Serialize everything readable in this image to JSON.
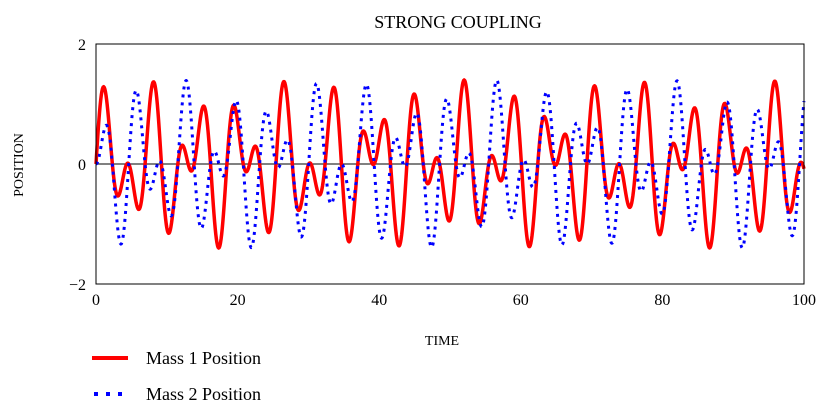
{
  "chart_data": {
    "type": "line",
    "title": "STRONG COUPLING",
    "xlabel": "TIME",
    "ylabel": "POSITION",
    "xlim": [
      0,
      100
    ],
    "ylim": [
      -2,
      2
    ],
    "x_ticks": [
      "0",
      "20",
      "40",
      "60",
      "80",
      "100"
    ],
    "y_ticks": [
      "2",
      "0",
      "−2"
    ],
    "x_tick_values": [
      0,
      20,
      40,
      60,
      80,
      100
    ],
    "y_tick_values": [
      2,
      0,
      -2
    ],
    "grid": false,
    "legend_position": "bottom-left",
    "series": [
      {
        "name": "Mass 1 Position",
        "color": "#ff0000",
        "style": "solid",
        "model": {
          "description": "sum of two sinusoids",
          "components": [
            {
              "amplitude": 0.7,
              "period": 6.3,
              "phase": 0
            },
            {
              "amplitude": 0.7,
              "period": 3.65,
              "phase": 0
            }
          ]
        }
      },
      {
        "name": "Mass 2 Position",
        "color": "#0000ff",
        "style": "dotted",
        "model": {
          "description": "sum of two sinusoids",
          "components": [
            {
              "amplitude": 0.7,
              "period": 6.3,
              "phase": 1.5708
            },
            {
              "amplitude": -0.7,
              "period": 3.65,
              "phase": 1.5708
            }
          ]
        }
      }
    ]
  }
}
